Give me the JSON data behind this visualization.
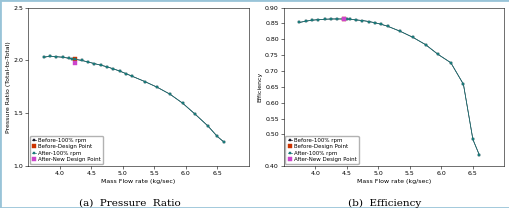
{
  "pr_x": [
    3.75,
    3.85,
    3.95,
    4.05,
    4.15,
    4.2,
    4.25,
    4.35,
    4.45,
    4.55,
    4.65,
    4.75,
    4.85,
    4.95,
    5.05,
    5.15,
    5.35,
    5.55,
    5.75,
    5.95,
    6.15,
    6.35,
    6.5,
    6.6
  ],
  "pr_y": [
    2.03,
    2.04,
    2.035,
    2.03,
    2.02,
    2.015,
    2.01,
    2.0,
    1.985,
    1.97,
    1.955,
    1.94,
    1.92,
    1.9,
    1.875,
    1.85,
    1.8,
    1.745,
    1.68,
    1.595,
    1.49,
    1.38,
    1.28,
    1.23
  ],
  "pr_design_x": [
    4.25
  ],
  "pr_design_before_y": [
    2.01
  ],
  "pr_design_after_y": [
    1.975
  ],
  "eff_x": [
    3.75,
    3.85,
    3.95,
    4.05,
    4.15,
    4.25,
    4.35,
    4.45,
    4.5,
    4.55,
    4.65,
    4.75,
    4.85,
    4.95,
    5.05,
    5.15,
    5.35,
    5.55,
    5.75,
    5.95,
    6.15,
    6.35,
    6.5,
    6.6
  ],
  "eff_y": [
    0.853,
    0.857,
    0.86,
    0.862,
    0.863,
    0.864,
    0.864,
    0.864,
    0.864,
    0.863,
    0.861,
    0.859,
    0.856,
    0.852,
    0.847,
    0.841,
    0.825,
    0.806,
    0.783,
    0.752,
    0.726,
    0.658,
    0.484,
    0.436
  ],
  "eff_design_x": [
    4.45
  ],
  "eff_design_before_y": [
    0.864
  ],
  "eff_design_after_y": [
    0.864
  ],
  "color_teal_line": "#1a7a7a",
  "color_teal_marker": "#1a7a7a",
  "color_dark_marker": "#1a1a2a",
  "color_red_design": "#cc3300",
  "color_magenta_design": "#cc44cc",
  "pr_xlim": [
    3.5,
    7.0
  ],
  "pr_ylim": [
    1.0,
    2.5
  ],
  "eff_xlim": [
    3.5,
    7.0
  ],
  "eff_ylim": [
    0.4,
    0.9
  ],
  "pr_yticks": [
    1.0,
    1.5,
    2.0,
    2.5
  ],
  "eff_yticks": [
    0.4,
    0.5,
    0.55,
    0.6,
    0.65,
    0.7,
    0.75,
    0.8,
    0.85,
    0.9
  ],
  "xticks": [
    4.0,
    4.5,
    5.0,
    5.5,
    6.0,
    6.5
  ],
  "xlabel": "Mass Flow rate (kg/sec)",
  "pr_ylabel": "Pressure Ratio (Total-to-Total)",
  "eff_ylabel": "Efficiency",
  "caption_a": "(a)  Pressure  Ratio",
  "caption_b": "(b)  Efficiency",
  "legend_before_line": "Before-100% rpm",
  "legend_before_design": "Before-Design Point",
  "legend_after_line": "After-100% rpm",
  "legend_after_design": "After-New Design Point",
  "border_color": "#99c4d8",
  "tick_fontsize": 4.5,
  "label_fontsize": 4.5,
  "legend_fontsize": 4.0,
  "caption_fontsize": 7.5
}
